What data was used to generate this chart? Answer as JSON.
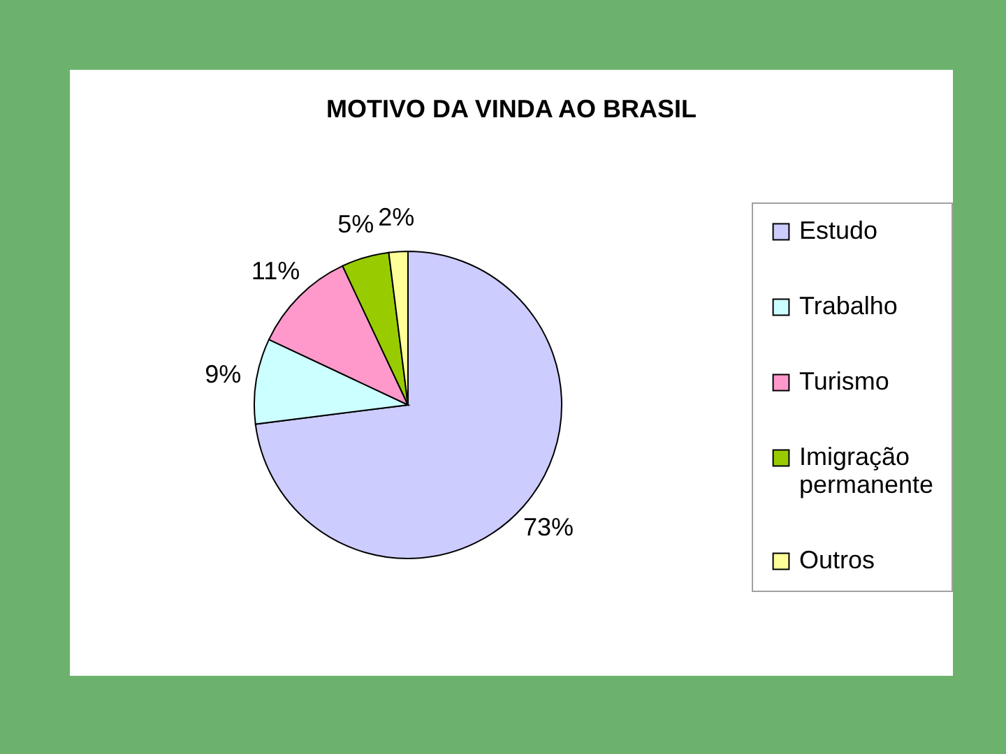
{
  "chart_data": {
    "type": "pie",
    "title": "MOTIVO DA VINDA AO BRASIL",
    "categories": [
      "Estudo",
      "Trabalho",
      "Turismo",
      "Imigração permanente",
      "Outros"
    ],
    "values": [
      73,
      9,
      11,
      5,
      2
    ],
    "colors": [
      "#ccccff",
      "#ccffff",
      "#ff99cc",
      "#99cc00",
      "#ffff99"
    ],
    "value_labels": [
      "73%",
      "9%",
      "11%",
      "5%",
      "2%"
    ],
    "legend": "right"
  }
}
